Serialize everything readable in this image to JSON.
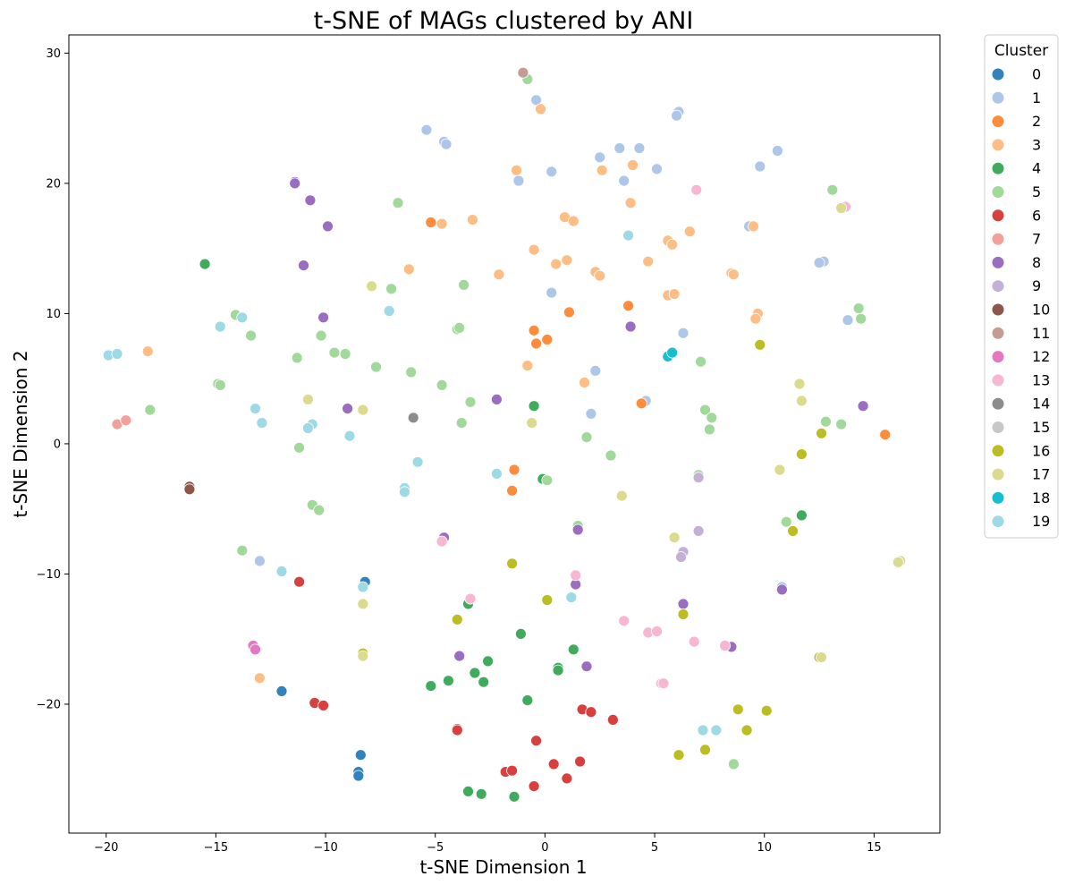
{
  "chart_data": {
    "type": "scatter",
    "title": "t-SNE of MAGs clustered by ANI",
    "xlabel": "t-SNE Dimension 1",
    "ylabel": "t-SNE Dimension 2",
    "xlim": [
      -21.7,
      18.0
    ],
    "ylim": [
      -29.9,
      31.4
    ],
    "x_ticks": [
      -20,
      -15,
      -10,
      -5,
      0,
      5,
      10,
      15
    ],
    "y_ticks": [
      -20,
      -10,
      0,
      10,
      20,
      30
    ],
    "grid": false,
    "legend": {
      "title": "Cluster",
      "placement": "outside-top-right"
    },
    "series": [
      {
        "name": "0",
        "color": "#3182bd",
        "points": [
          [
            -8.2,
            -10.6
          ],
          [
            -12.0,
            -19.0
          ],
          [
            -8.4,
            -23.9
          ],
          [
            -8.5,
            -25.2
          ],
          [
            -8.5,
            -25.5
          ]
        ]
      },
      {
        "name": "1",
        "color": "#aec7e8",
        "points": [
          [
            -0.4,
            26.4
          ],
          [
            6.1,
            25.5
          ],
          [
            6.0,
            25.2
          ],
          [
            -5.4,
            24.1
          ],
          [
            -4.6,
            23.2
          ],
          [
            -4.5,
            23.0
          ],
          [
            3.4,
            22.7
          ],
          [
            4.3,
            22.7
          ],
          [
            10.6,
            22.5
          ],
          [
            2.5,
            22.0
          ],
          [
            9.8,
            21.3
          ],
          [
            5.1,
            21.1
          ],
          [
            0.3,
            20.9
          ],
          [
            -1.2,
            20.2
          ],
          [
            3.6,
            20.2
          ],
          [
            9.3,
            16.7
          ],
          [
            12.7,
            14.0
          ],
          [
            12.5,
            13.9
          ],
          [
            0.3,
            11.6
          ],
          [
            13.8,
            9.5
          ],
          [
            6.3,
            8.5
          ],
          [
            2.3,
            5.6
          ],
          [
            4.6,
            3.3
          ],
          [
            2.1,
            2.3
          ],
          [
            -13.0,
            -9.0
          ],
          [
            10.8,
            -11.0
          ]
        ]
      },
      {
        "name": "2",
        "color": "#fd8d3c",
        "points": [
          [
            -5.2,
            17.0
          ],
          [
            1.1,
            10.1
          ],
          [
            3.8,
            10.6
          ],
          [
            -0.5,
            8.7
          ],
          [
            -0.4,
            7.7
          ],
          [
            0.1,
            8.0
          ],
          [
            4.4,
            3.1
          ],
          [
            15.5,
            0.7
          ],
          [
            -1.4,
            -2.0
          ],
          [
            -1.5,
            -3.6
          ]
        ]
      },
      {
        "name": "3",
        "color": "#fdbe85",
        "points": [
          [
            -0.2,
            25.7
          ],
          [
            -1.3,
            21.0
          ],
          [
            2.6,
            21.0
          ],
          [
            4.0,
            21.4
          ],
          [
            -4.7,
            16.9
          ],
          [
            -3.3,
            17.2
          ],
          [
            0.9,
            17.4
          ],
          [
            1.3,
            17.1
          ],
          [
            3.9,
            18.5
          ],
          [
            6.6,
            16.3
          ],
          [
            5.6,
            15.6
          ],
          [
            5.8,
            15.3
          ],
          [
            9.5,
            16.7
          ],
          [
            -0.5,
            14.9
          ],
          [
            0.5,
            13.8
          ],
          [
            1.0,
            14.1
          ],
          [
            4.7,
            14.0
          ],
          [
            -6.2,
            13.4
          ],
          [
            -2.1,
            13.0
          ],
          [
            2.3,
            13.2
          ],
          [
            2.5,
            12.9
          ],
          [
            8.5,
            13.1
          ],
          [
            8.6,
            13.0
          ],
          [
            5.6,
            11.4
          ],
          [
            5.9,
            11.5
          ],
          [
            9.7,
            10.0
          ],
          [
            9.6,
            9.6
          ],
          [
            -18.1,
            7.1
          ],
          [
            -0.8,
            6.0
          ],
          [
            1.8,
            4.7
          ],
          [
            -13.0,
            -18.0
          ]
        ]
      },
      {
        "name": "4",
        "color": "#41ab5d",
        "points": [
          [
            -15.5,
            13.8
          ],
          [
            -0.5,
            2.9
          ],
          [
            -0.1,
            -2.7
          ],
          [
            11.7,
            -5.5
          ],
          [
            -3.5,
            -12.3
          ],
          [
            -1.1,
            -14.6
          ],
          [
            1.3,
            -15.8
          ],
          [
            0.6,
            -17.2
          ],
          [
            0.6,
            -17.4
          ],
          [
            -2.6,
            -16.7
          ],
          [
            -3.2,
            -17.6
          ],
          [
            -4.4,
            -18.2
          ],
          [
            -2.8,
            -18.3
          ],
          [
            -5.2,
            -18.6
          ],
          [
            -0.8,
            -19.7
          ],
          [
            -3.5,
            -26.7
          ],
          [
            -2.9,
            -26.9
          ],
          [
            -1.4,
            -27.1
          ]
        ]
      },
      {
        "name": "5",
        "color": "#a1d99b",
        "points": [
          [
            -0.8,
            28.0
          ],
          [
            -6.7,
            18.5
          ],
          [
            13.1,
            19.5
          ],
          [
            -7.0,
            11.9
          ],
          [
            -3.7,
            12.2
          ],
          [
            -14.1,
            9.9
          ],
          [
            -13.4,
            8.3
          ],
          [
            -4.0,
            8.8
          ],
          [
            -3.9,
            8.9
          ],
          [
            -10.2,
            8.3
          ],
          [
            -9.6,
            7.0
          ],
          [
            -9.1,
            6.9
          ],
          [
            -11.3,
            6.6
          ],
          [
            -7.7,
            5.9
          ],
          [
            -6.1,
            5.5
          ],
          [
            -14.9,
            4.6
          ],
          [
            -14.8,
            4.5
          ],
          [
            -4.7,
            4.5
          ],
          [
            -18.0,
            2.6
          ],
          [
            -3.4,
            3.2
          ],
          [
            7.1,
            6.3
          ],
          [
            7.3,
            2.6
          ],
          [
            7.6,
            2.0
          ],
          [
            7.5,
            1.1
          ],
          [
            14.3,
            10.4
          ],
          [
            14.4,
            9.6
          ],
          [
            12.8,
            1.7
          ],
          [
            13.5,
            1.5
          ],
          [
            -11.2,
            -0.3
          ],
          [
            -3.8,
            1.6
          ],
          [
            1.9,
            0.5
          ],
          [
            3.0,
            -0.9
          ],
          [
            0.1,
            -2.8
          ],
          [
            -10.6,
            -4.7
          ],
          [
            -10.3,
            -5.1
          ],
          [
            11.0,
            -6.0
          ],
          [
            1.5,
            -6.3
          ],
          [
            -13.8,
            -8.2
          ],
          [
            7.0,
            -2.4
          ],
          [
            8.6,
            -24.6
          ]
        ]
      },
      {
        "name": "6",
        "color": "#d6403f",
        "points": [
          [
            -11.2,
            -10.6
          ],
          [
            -10.5,
            -19.9
          ],
          [
            -10.1,
            -20.1
          ],
          [
            -4.0,
            -21.9
          ],
          [
            -4.0,
            -22.0
          ],
          [
            1.7,
            -20.4
          ],
          [
            2.1,
            -20.6
          ],
          [
            3.1,
            -21.2
          ],
          [
            -0.4,
            -22.8
          ],
          [
            0.4,
            -24.6
          ],
          [
            1.6,
            -24.4
          ],
          [
            -1.8,
            -25.2
          ],
          [
            -1.5,
            -25.1
          ],
          [
            1.0,
            -25.7
          ],
          [
            -0.5,
            -26.3
          ]
        ]
      },
      {
        "name": "7",
        "color": "#f4a09a",
        "points": [
          [
            -19.5,
            1.5
          ],
          [
            -19.1,
            1.8
          ]
        ]
      },
      {
        "name": "8",
        "color": "#9a6dc1",
        "points": [
          [
            -11.4,
            20.1
          ],
          [
            -11.4,
            20.0
          ],
          [
            -10.7,
            18.7
          ],
          [
            -9.9,
            16.7
          ],
          [
            -11.0,
            13.7
          ],
          [
            -10.1,
            9.7
          ],
          [
            3.9,
            9.0
          ],
          [
            -2.2,
            3.4
          ],
          [
            -9.0,
            2.7
          ],
          [
            14.5,
            2.9
          ],
          [
            -4.6,
            -7.2
          ],
          [
            1.5,
            -6.6
          ],
          [
            1.4,
            -10.8
          ],
          [
            -3.9,
            -16.3
          ],
          [
            1.9,
            -17.1
          ],
          [
            6.3,
            -12.3
          ],
          [
            8.5,
            -15.6
          ],
          [
            10.8,
            -11.2
          ]
        ]
      },
      {
        "name": "9",
        "color": "#c5b0d5",
        "points": [
          [
            7.0,
            -6.7
          ],
          [
            6.3,
            -8.3
          ],
          [
            6.2,
            -8.7
          ],
          [
            7.0,
            -2.6
          ]
        ]
      },
      {
        "name": "10",
        "color": "#8c564b",
        "points": [
          [
            -16.2,
            -3.3
          ],
          [
            -16.2,
            -3.5
          ]
        ]
      },
      {
        "name": "11",
        "color": "#c49c94",
        "points": [
          [
            -1.0,
            28.5
          ]
        ]
      },
      {
        "name": "12",
        "color": "#e377c2",
        "points": [
          [
            -13.3,
            -15.5
          ],
          [
            -13.2,
            -15.8
          ]
        ]
      },
      {
        "name": "13",
        "color": "#f7b6d2",
        "points": [
          [
            6.9,
            19.5
          ],
          [
            13.7,
            18.2
          ],
          [
            -4.7,
            -7.5
          ],
          [
            1.4,
            -10.1
          ],
          [
            -3.4,
            -11.9
          ],
          [
            3.6,
            -13.6
          ],
          [
            4.7,
            -14.5
          ],
          [
            5.1,
            -14.4
          ],
          [
            6.8,
            -15.2
          ],
          [
            8.2,
            -15.5
          ],
          [
            5.3,
            -18.4
          ],
          [
            5.4,
            -18.4
          ]
        ]
      },
      {
        "name": "14",
        "color": "#8c8c8c",
        "points": [
          [
            -6.0,
            2.0
          ]
        ]
      },
      {
        "name": "15",
        "color": "#c7c7c7",
        "points": []
      },
      {
        "name": "16",
        "color": "#bcbd22",
        "points": [
          [
            9.8,
            7.6
          ],
          [
            12.6,
            0.8
          ],
          [
            11.7,
            -0.8
          ],
          [
            11.3,
            -6.7
          ],
          [
            -1.5,
            -9.2
          ],
          [
            0.1,
            -12.0
          ],
          [
            -4.0,
            -13.5
          ],
          [
            6.3,
            -13.1
          ],
          [
            -8.3,
            -16.1
          ],
          [
            12.5,
            -16.4
          ],
          [
            8.8,
            -20.4
          ],
          [
            10.1,
            -20.5
          ],
          [
            9.2,
            -22.0
          ],
          [
            6.1,
            -23.9
          ],
          [
            7.3,
            -23.5
          ]
        ]
      },
      {
        "name": "17",
        "color": "#dbdb8d",
        "points": [
          [
            13.5,
            18.1
          ],
          [
            -7.9,
            12.1
          ],
          [
            11.6,
            4.6
          ],
          [
            11.7,
            3.3
          ],
          [
            -10.8,
            3.4
          ],
          [
            -8.3,
            2.6
          ],
          [
            -0.6,
            1.6
          ],
          [
            10.7,
            -2.0
          ],
          [
            3.5,
            -4.0
          ],
          [
            5.9,
            -7.2
          ],
          [
            16.2,
            -9.0
          ],
          [
            16.1,
            -9.1
          ],
          [
            -8.3,
            -12.3
          ],
          [
            -8.3,
            -16.3
          ],
          [
            12.6,
            -16.4
          ]
        ]
      },
      {
        "name": "18",
        "color": "#17becf",
        "points": [
          [
            5.6,
            6.7
          ],
          [
            5.8,
            7.0
          ]
        ]
      },
      {
        "name": "19",
        "color": "#9edae5",
        "points": [
          [
            3.8,
            16.0
          ],
          [
            -13.8,
            9.7
          ],
          [
            -14.8,
            9.0
          ],
          [
            -7.1,
            10.2
          ],
          [
            -19.9,
            6.8
          ],
          [
            -19.5,
            6.9
          ],
          [
            -13.2,
            2.7
          ],
          [
            -12.9,
            1.6
          ],
          [
            -10.6,
            1.5
          ],
          [
            -10.8,
            1.2
          ],
          [
            -8.9,
            0.6
          ],
          [
            -5.8,
            -1.4
          ],
          [
            -6.4,
            -3.4
          ],
          [
            -6.4,
            -3.7
          ],
          [
            -2.2,
            -2.3
          ],
          [
            -12.0,
            -9.8
          ],
          [
            -8.3,
            -11.0
          ],
          [
            1.2,
            -11.8
          ],
          [
            7.2,
            -22.0
          ],
          [
            7.8,
            -22.0
          ]
        ]
      }
    ]
  }
}
